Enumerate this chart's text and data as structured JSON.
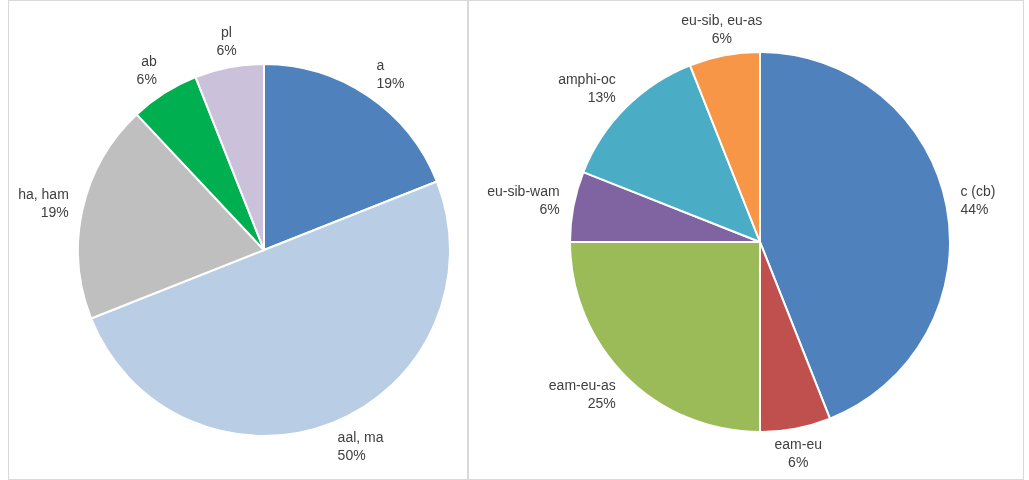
{
  "chart_data": [
    {
      "type": "pie",
      "categories": [
        "a",
        "aal, ma",
        "ha, ham",
        "ab",
        "pl"
      ],
      "values": [
        19,
        50,
        19,
        6,
        6
      ],
      "colors": [
        "#4f81bd",
        "#b9cde5",
        "#bfbfbf",
        "#00b050",
        "#ccc1da"
      ],
      "value_labels": [
        "19%",
        "50%",
        "19%",
        "6%",
        "6%"
      ],
      "legend": false
    },
    {
      "type": "pie",
      "categories": [
        "c (cb)",
        "eam-eu",
        "eam-eu-as",
        "eu-sib-wam",
        "amphi-oc",
        "eu-sib, eu-as"
      ],
      "values": [
        44,
        6,
        25,
        6,
        13,
        6
      ],
      "colors": [
        "#4f81bd",
        "#c0504d",
        "#9bbb59",
        "#8064a2",
        "#4bacc6",
        "#f79646"
      ],
      "value_labels": [
        "44%",
        "6%",
        "25%",
        "6%",
        "13%",
        "6%"
      ],
      "legend": false
    }
  ]
}
